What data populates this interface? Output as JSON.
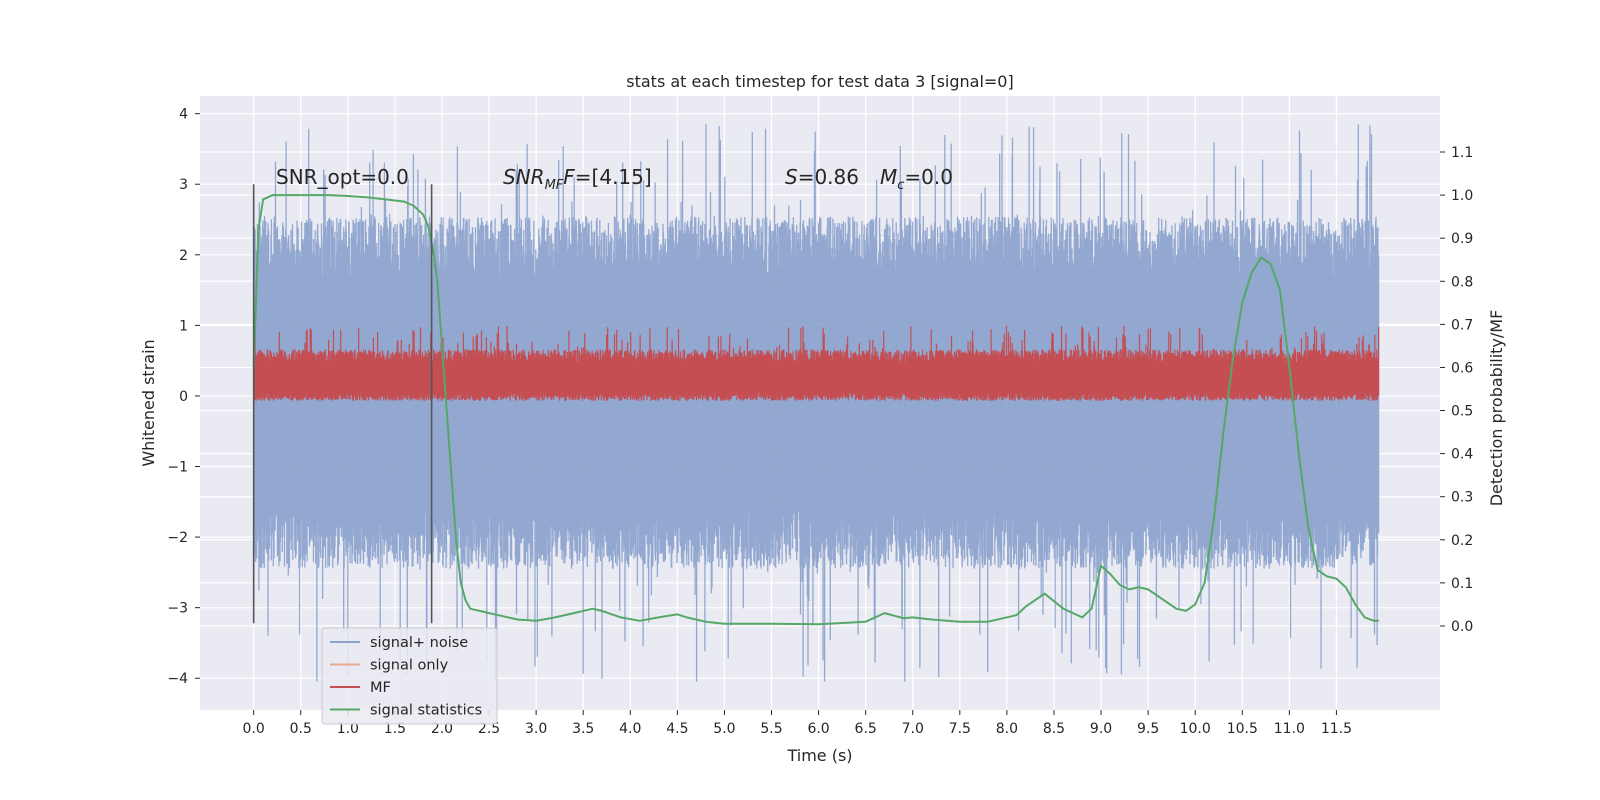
{
  "chart_data": {
    "type": "line",
    "title": "stats at each timestep for test data 3 [signal=0]",
    "xlabel": "Time (s)",
    "ylabel_left": "Whitened strain",
    "ylabel_right": "Detection probability/MF",
    "xlim": [
      -0.57,
      12.6
    ],
    "ylim_left": [
      -4.45,
      4.25
    ],
    "ylim_right": [
      -0.195,
      1.23
    ],
    "x_ticks": [
      "0.0",
      "0.5",
      "1.0",
      "1.5",
      "2.0",
      "2.5",
      "3.0",
      "3.5",
      "4.0",
      "4.5",
      "5.0",
      "5.5",
      "6.0",
      "6.5",
      "7.0",
      "7.5",
      "8.0",
      "8.5",
      "9.0",
      "9.5",
      "10.0",
      "10.5",
      "11.0",
      "11.5"
    ],
    "y_ticks_left": [
      "4",
      "3",
      "2",
      "1",
      "0",
      "−1",
      "−2",
      "−3",
      "−4"
    ],
    "y_ticks_right": [
      "1.1",
      "1.0",
      "0.9",
      "0.8",
      "0.7",
      "0.6",
      "0.5",
      "0.4",
      "0.3",
      "0.2",
      "0.1",
      "0.0"
    ],
    "grid": true,
    "legend_placement": "lower-left",
    "annotations": {
      "snr_opt": "SNR_opt=0.0",
      "snr_mf_main": "SNR",
      "snr_mf_sub": "MF",
      "snr_mf_value": "=[4.15]",
      "s_symbol": "S",
      "s_value": "=0.86",
      "mc_symbol": "M",
      "mc_sub": "c",
      "mc_value": "=0.0"
    },
    "vertical_markers_x": [
      0.0,
      1.89
    ],
    "noise_band": {
      "x_range": [
        0.0,
        11.95
      ],
      "typical_y_range": [
        -2.0,
        2.1
      ],
      "peak_extent": [
        -4.1,
        3.85
      ]
    },
    "mf_band": {
      "x_range": [
        0.0,
        11.95
      ],
      "typical_y_range": [
        0.05,
        0.55
      ],
      "peak_max": 1.0
    },
    "series": [
      {
        "name": "signal+ noise",
        "color": "#8aa1cc"
      },
      {
        "name": "signal only",
        "color": "#e9a88d"
      },
      {
        "name": "MF",
        "color": "#c44e52"
      },
      {
        "name": "signal statistics",
        "color": "#55a868",
        "x": [
          0.0,
          0.05,
          0.1,
          0.15,
          0.2,
          0.3,
          0.5,
          0.8,
          1.0,
          1.2,
          1.4,
          1.6,
          1.7,
          1.8,
          1.85,
          1.9,
          1.95,
          2.0,
          2.05,
          2.1,
          2.15,
          2.2,
          2.25,
          2.3,
          2.4,
          2.5,
          2.6,
          2.8,
          3.0,
          3.2,
          3.4,
          3.6,
          3.7,
          3.9,
          4.1,
          4.3,
          4.5,
          4.6,
          4.8,
          5.0,
          5.5,
          6.0,
          6.5,
          6.7,
          6.9,
          7.0,
          7.2,
          7.5,
          7.8,
          8.1,
          8.2,
          8.4,
          8.6,
          8.8,
          8.9,
          9.0,
          9.1,
          9.2,
          9.3,
          9.4,
          9.5,
          9.6,
          9.7,
          9.8,
          9.9,
          10.0,
          10.1,
          10.2,
          10.3,
          10.4,
          10.5,
          10.6,
          10.7,
          10.8,
          10.9,
          11.0,
          11.1,
          11.2,
          11.3,
          11.4,
          11.5,
          11.6,
          11.7,
          11.8,
          11.9,
          11.95
        ],
        "y": [
          0.6,
          0.92,
          0.99,
          0.995,
          1.0,
          1.0,
          1.0,
          1.0,
          0.998,
          0.995,
          0.99,
          0.985,
          0.975,
          0.955,
          0.93,
          0.88,
          0.8,
          0.65,
          0.5,
          0.35,
          0.2,
          0.1,
          0.06,
          0.04,
          0.035,
          0.03,
          0.025,
          0.015,
          0.012,
          0.02,
          0.03,
          0.04,
          0.035,
          0.02,
          0.012,
          0.02,
          0.027,
          0.02,
          0.01,
          0.005,
          0.005,
          0.004,
          0.01,
          0.03,
          0.018,
          0.02,
          0.015,
          0.01,
          0.01,
          0.025,
          0.045,
          0.075,
          0.04,
          0.02,
          0.04,
          0.14,
          0.12,
          0.095,
          0.085,
          0.09,
          0.085,
          0.07,
          0.055,
          0.04,
          0.035,
          0.05,
          0.1,
          0.25,
          0.45,
          0.62,
          0.75,
          0.82,
          0.855,
          0.84,
          0.78,
          0.6,
          0.4,
          0.23,
          0.13,
          0.115,
          0.11,
          0.09,
          0.05,
          0.02,
          0.012,
          0.012
        ]
      }
    ]
  }
}
